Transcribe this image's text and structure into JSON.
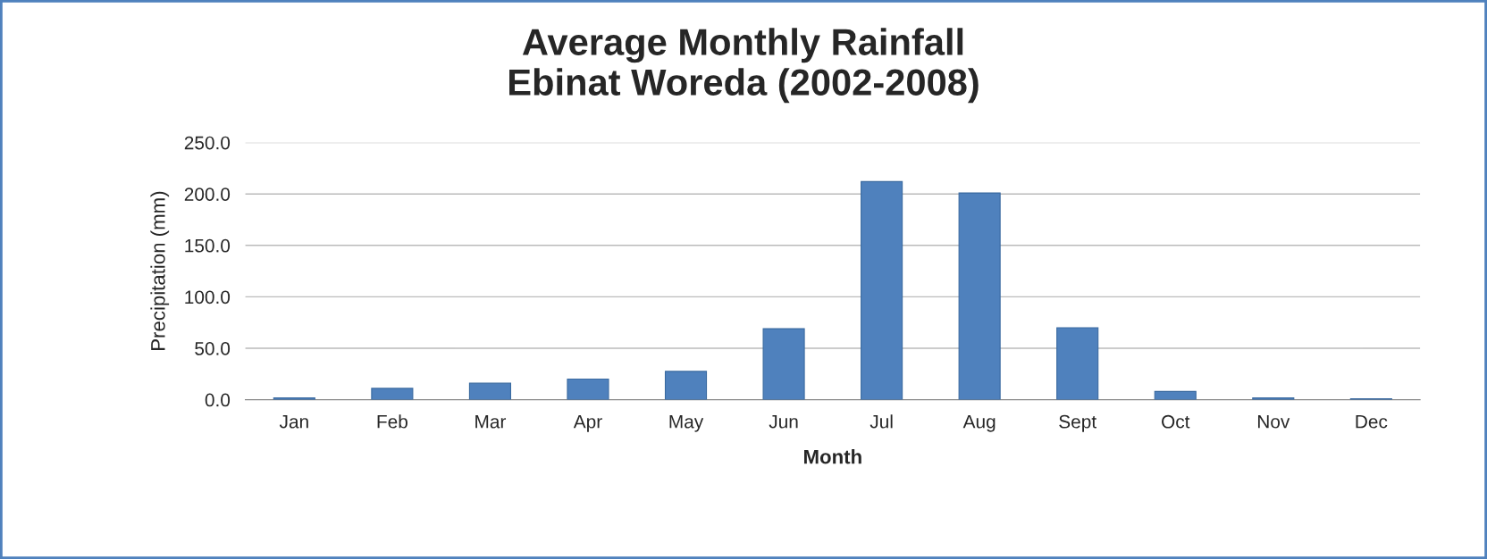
{
  "chart_data": {
    "type": "bar",
    "title": "Average Monthly Rainfall\nEbinat Woreda (2002-2008)",
    "xlabel": "Month",
    "ylabel": "Precipitation (mm)",
    "categories": [
      "Jan",
      "Feb",
      "Mar",
      "Apr",
      "May",
      "Jun",
      "Jul",
      "Aug",
      "Sept",
      "Oct",
      "Nov",
      "Dec"
    ],
    "values": [
      1.7,
      11,
      16,
      20,
      27.5,
      69,
      212,
      201,
      70,
      8,
      1.7,
      0.9
    ],
    "color": "#4f81bd",
    "ylim": [
      0,
      250
    ],
    "yticks": [
      {
        "value": 0,
        "label": "0.0"
      },
      {
        "value": 50,
        "label": "50.0"
      },
      {
        "value": 100,
        "label": "100.0"
      },
      {
        "value": 150,
        "label": "150.0"
      },
      {
        "value": 200,
        "label": "200.0"
      },
      {
        "value": 250,
        "label": "250.0"
      }
    ],
    "grid": "y",
    "legend": false
  }
}
